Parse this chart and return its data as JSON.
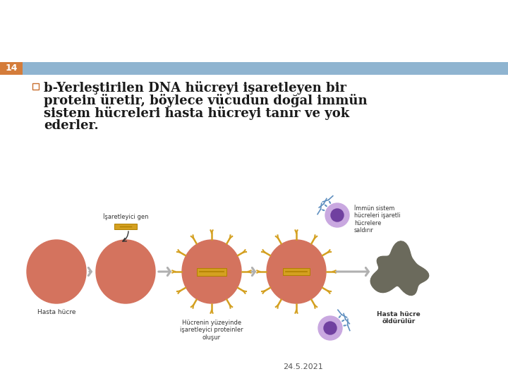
{
  "background_color": "#ffffff",
  "header_bar_color": "#8fb4d0",
  "header_num_bg": "#d47c3a",
  "header_text": "14",
  "header_text_color": "#ffffff",
  "bullet_lines": [
    "b-Yerleştirilen DNA hücreyi işaretleyen bir",
    "protein üretir, böylece vücudun doğal immün",
    "sistem hücreleri hasta hücreyi tanır ve yok",
    "ederler."
  ],
  "bullet_font_size": 13,
  "bullet_color": "#1a1a1a",
  "date_text": "24.5.2021",
  "date_font_size": 8,
  "date_color": "#555555",
  "salmon": "#d4735e",
  "dark_gray": "#6b6a5c",
  "arrow_gray": "#b0b0b0",
  "gold": "#d4a020",
  "gold_dark": "#b08000",
  "purple_light": "#c9a8e0",
  "purple_dark": "#7040a0",
  "blue_appendage": "#6090c0",
  "fig_width": 7.2,
  "fig_height": 5.4
}
